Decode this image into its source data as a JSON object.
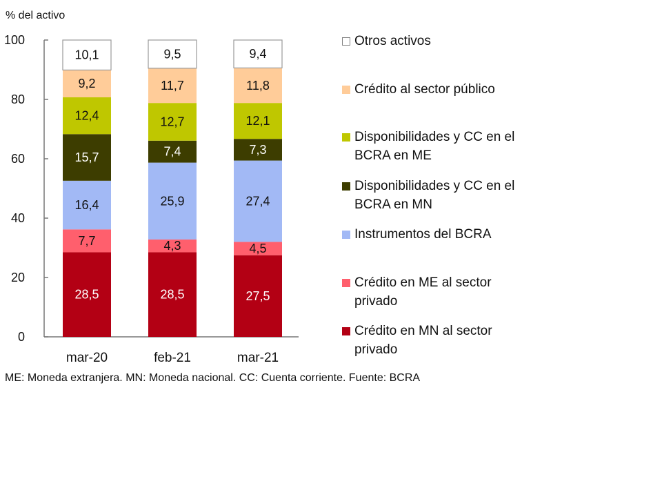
{
  "chart_data": {
    "type": "bar",
    "stacked": true,
    "title": "",
    "ylabel": "% del activo",
    "xlabel": "",
    "ylim": [
      0,
      100
    ],
    "yticks": [
      "0",
      "20",
      "40",
      "60",
      "80",
      "100"
    ],
    "categories": [
      "mar-20",
      "feb-21",
      "mar-21"
    ],
    "legend_position": "right",
    "series": [
      {
        "name": "Crédito en MN al sector privado",
        "color": "#B30014",
        "label_color": "#ffffff",
        "values": [
          28.5,
          28.5,
          27.5
        ],
        "labels": [
          "28,5",
          "28,5",
          "27,5"
        ]
      },
      {
        "name": "Crédito en ME al sector privado",
        "color": "#FF5F6D",
        "label_color": "#111111",
        "values": [
          7.7,
          4.3,
          4.5
        ],
        "labels": [
          "7,7",
          "4,3",
          "4,5"
        ]
      },
      {
        "name": "Instrumentos del BCRA",
        "color": "#A2B9F5",
        "label_color": "#111111",
        "values": [
          16.4,
          25.9,
          27.4
        ],
        "labels": [
          "16,4",
          "25,9",
          "27,4"
        ]
      },
      {
        "name": "Disponibilidades y CC en el BCRA en MN",
        "color": "#3D3D00",
        "label_color": "#ffffff",
        "values": [
          15.7,
          7.4,
          7.3
        ],
        "labels": [
          "15,7",
          "7,4",
          "7,3"
        ]
      },
      {
        "name": "Disponibilidades y CC en el BCRA en ME",
        "color": "#BFC700",
        "label_color": "#111111",
        "values": [
          12.4,
          12.7,
          12.1
        ],
        "labels": [
          "12,4",
          "12,7",
          "12,1"
        ]
      },
      {
        "name": "Crédito al sector público",
        "color": "#FFCC99",
        "label_color": "#111111",
        "values": [
          9.2,
          11.7,
          11.8
        ],
        "labels": [
          "9,2",
          "11,7",
          "11,8"
        ]
      },
      {
        "name": "Otros activos",
        "color": "#FFFFFF",
        "label_color": "#111111",
        "values": [
          10.1,
          9.5,
          9.4
        ],
        "labels": [
          "10,1",
          "9,5",
          "9,4"
        ]
      }
    ],
    "legend": [
      {
        "line1": "Otros activos",
        "line2": "",
        "color": "#FFFFFF"
      },
      {
        "line1": "Crédito al sector público",
        "line2": "",
        "color": "#FFCC99"
      },
      {
        "line1": "Disponibilidades y CC en el",
        "line2": "BCRA en ME",
        "color": "#BFC700"
      },
      {
        "line1": "Disponibilidades y CC en el",
        "line2": "BCRA en MN",
        "color": "#3D3D00"
      },
      {
        "line1": "Instrumentos del BCRA",
        "line2": "",
        "color": "#A2B9F5"
      },
      {
        "line1": "Crédito en ME al sector",
        "line2": "privado",
        "color": "#FF5F6D"
      },
      {
        "line1": "Crédito en MN al sector",
        "line2": "privado",
        "color": "#B30014"
      }
    ],
    "note": "ME: Moneda extranjera. MN: Moneda nacional. CC: Cuenta corriente. Fuente: BCRA"
  }
}
